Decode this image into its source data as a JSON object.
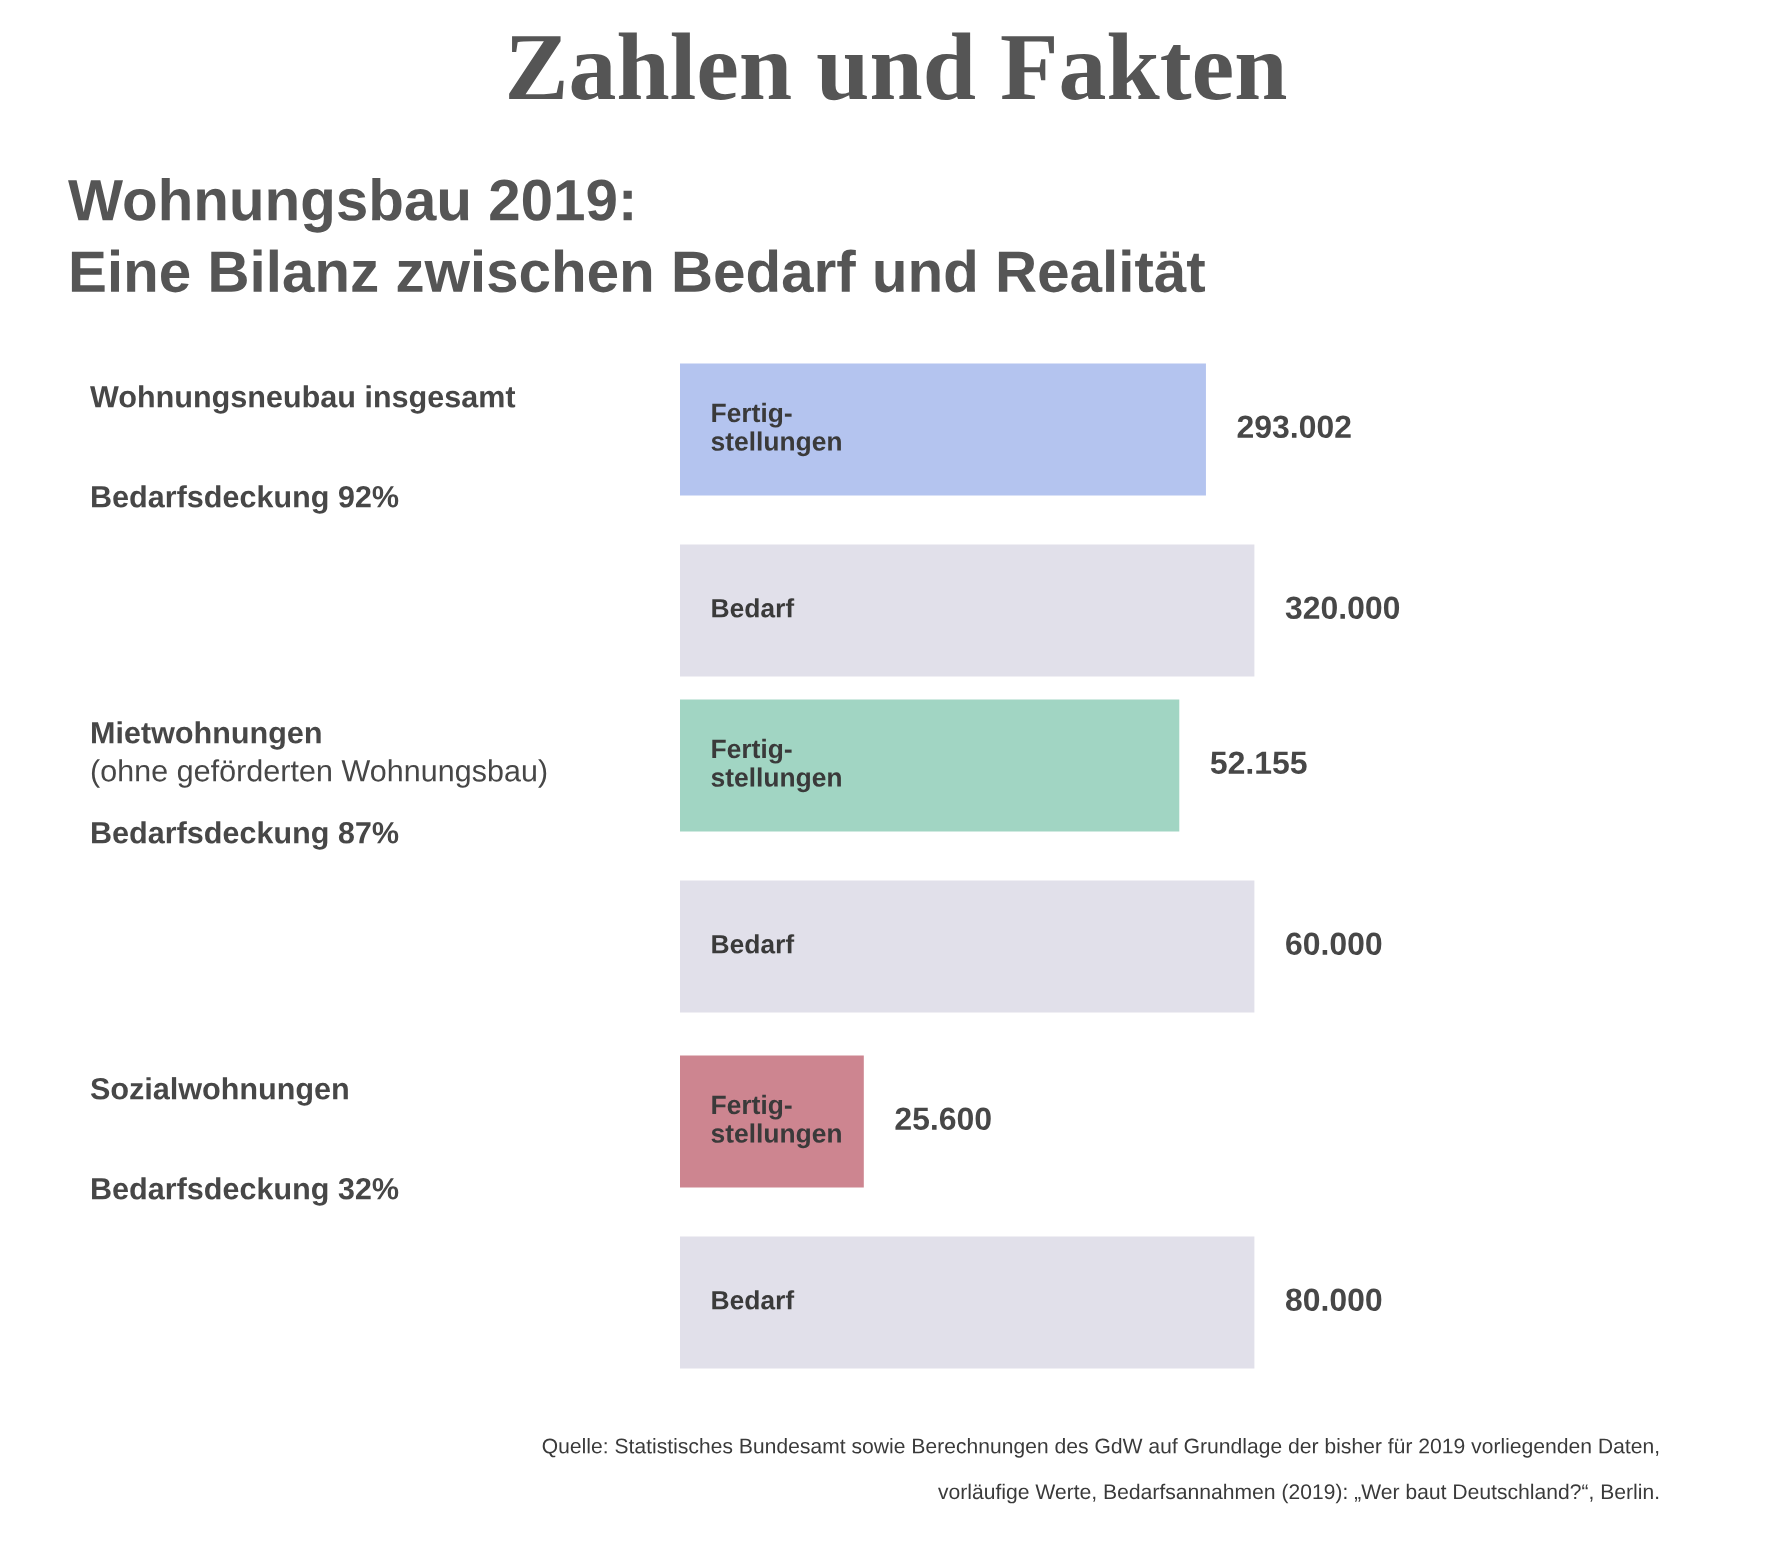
{
  "chart_data": [
    {
      "type": "bar",
      "orientation": "horizontal",
      "annotations": [
        "Wohnungsneubau insgesamt",
        "Bedarfsdeckung 92%",
        "Zahlen und Fakten",
        "Wohnungsbau 2019:\nEine Bilanz zwischen Bedarf und Realität"
      ],
      "categories": [
        "Fertig-\nstellungen",
        "Bedarf"
      ],
      "values": [
        293002,
        320000
      ],
      "colors": [
        "#b4c4ef",
        "#e1e0ea"
      ],
      "value_labels": [
        "293.002",
        "320.000"
      ],
      "tick_labels": "y"
    },
    {
      "type": "bar",
      "orientation": "horizontal",
      "subtitle": "(ohne geförderten Wohnungsbau)",
      "annotations": [
        "Mietwohnungen",
        "Bedarfsdeckung 87%"
      ],
      "categories": [
        "Fertig-\nstellungen",
        "Bedarf"
      ],
      "values": [
        52155,
        60000
      ],
      "colors": [
        "#a1d5c3",
        "#e1e0ea"
      ],
      "value_labels": [
        "52.155",
        "60.000"
      ],
      "tick_labels": "y"
    },
    {
      "type": "bar",
      "orientation": "horizontal",
      "annotations": [
        "Sozialwohnungen",
        "Bedarfsdeckung 32%",
        "Quelle: Statistisches Bundesamt sowie Berechnungen des GdW auf Grundlage der bisher für 2019 vorliegenden Daten,\nvorläufige Werte, Bedarfsannahmen (2019): „Wer baut Deutschland?“, Berlin."
      ],
      "categories": [
        "Fertig-\nstellungen",
        "Bedarf"
      ],
      "values": [
        25600,
        80000
      ],
      "colors": [
        "#cd8590",
        "#e1e0ea"
      ],
      "value_labels": [
        "25.600",
        "80.000"
      ],
      "tick_labels": "y"
    }
  ]
}
